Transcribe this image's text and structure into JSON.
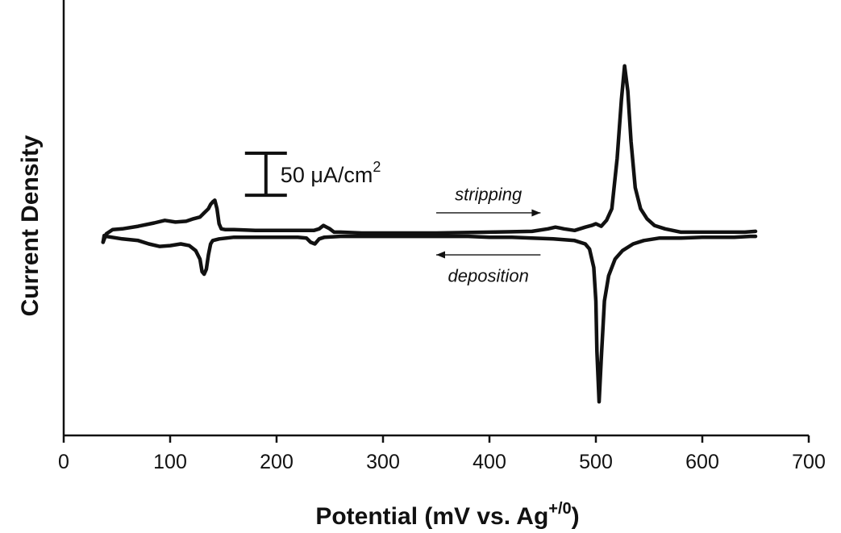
{
  "chart_data": {
    "type": "line",
    "title": "",
    "xlabel": {
      "main": "Potential (mV vs. Ag",
      "sup": "+/0",
      "close": ")"
    },
    "ylabel": "Current Density",
    "xlim": [
      0,
      700
    ],
    "xticks": [
      0,
      100,
      200,
      300,
      400,
      500,
      600,
      700
    ],
    "ylim": [
      -240,
      220
    ],
    "grid": false,
    "legend": "none",
    "line_color": "#111111",
    "scale_bar": {
      "value": 50,
      "label": "50 μA/cm",
      "label_sup": "2",
      "x": 190,
      "y_top": 96,
      "y_bottom": 46
    },
    "annotations": [
      {
        "text": "stripping",
        "arrow": "right",
        "x_start": 350,
        "x_end": 448,
        "y_arrow": 25,
        "y_text": 40
      },
      {
        "text": "deposition",
        "arrow": "left",
        "x_start": 448,
        "x_end": 350,
        "y_arrow": -25,
        "y_text": -40
      }
    ],
    "series": [
      {
        "x": [
          37,
          40,
          46,
          55,
          70,
          85,
          95,
          105,
          115,
          122,
          128,
          132,
          136,
          138,
          140,
          142,
          144,
          146,
          148,
          152,
          160,
          180,
          200,
          220,
          235,
          240,
          244,
          247,
          250,
          254,
          260,
          280,
          300,
          350,
          400,
          440,
          455,
          462,
          466,
          470,
          480,
          490,
          496,
          500,
          505,
          510,
          515,
          520,
          524,
          527,
          530,
          533,
          537,
          542,
          548,
          555,
          565,
          580,
          600,
          620,
          640,
          650
        ],
        "y": [
          -10,
          0,
          5,
          6,
          9,
          13,
          16,
          14,
          15,
          18,
          20,
          25,
          30,
          35,
          38,
          40,
          30,
          12,
          6,
          5,
          5,
          4,
          4,
          4,
          4,
          6,
          10,
          8,
          6,
          2,
          2,
          1,
          1,
          1,
          2,
          3,
          6,
          8,
          7,
          6,
          4,
          8,
          10,
          12,
          9,
          16,
          30,
          90,
          160,
          200,
          170,
          110,
          55,
          30,
          18,
          10,
          6,
          2,
          2,
          2,
          2,
          3
        ]
      },
      {
        "x": [
          650,
          645,
          630,
          600,
          580,
          560,
          545,
          535,
          525,
          518,
          512,
          508,
          505,
          503,
          501,
          500,
          498,
          494,
          490,
          480,
          460,
          440,
          420,
          400,
          380,
          350,
          320,
          300,
          280,
          260,
          245,
          240,
          236,
          232,
          228,
          220,
          200,
          180,
          160,
          146,
          140,
          138,
          136,
          134,
          132,
          130,
          128,
          124,
          118,
          110,
          100,
          90,
          80,
          70,
          55,
          45,
          40,
          38,
          37
        ],
        "y": [
          -3,
          -3,
          -4,
          -4,
          -5,
          -5,
          -8,
          -12,
          -20,
          -30,
          -50,
          -80,
          -150,
          -200,
          -140,
          -80,
          -40,
          -18,
          -12,
          -8,
          -6,
          -5,
          -4,
          -4,
          -3,
          -3,
          -3,
          -3,
          -3,
          -3,
          -4,
          -6,
          -12,
          -10,
          -5,
          -4,
          -4,
          -4,
          -4,
          -6,
          -8,
          -12,
          -25,
          -42,
          -48,
          -45,
          -30,
          -20,
          -14,
          -12,
          -14,
          -15,
          -12,
          -8,
          -6,
          -4,
          -3,
          -2,
          -10
        ]
      }
    ]
  }
}
